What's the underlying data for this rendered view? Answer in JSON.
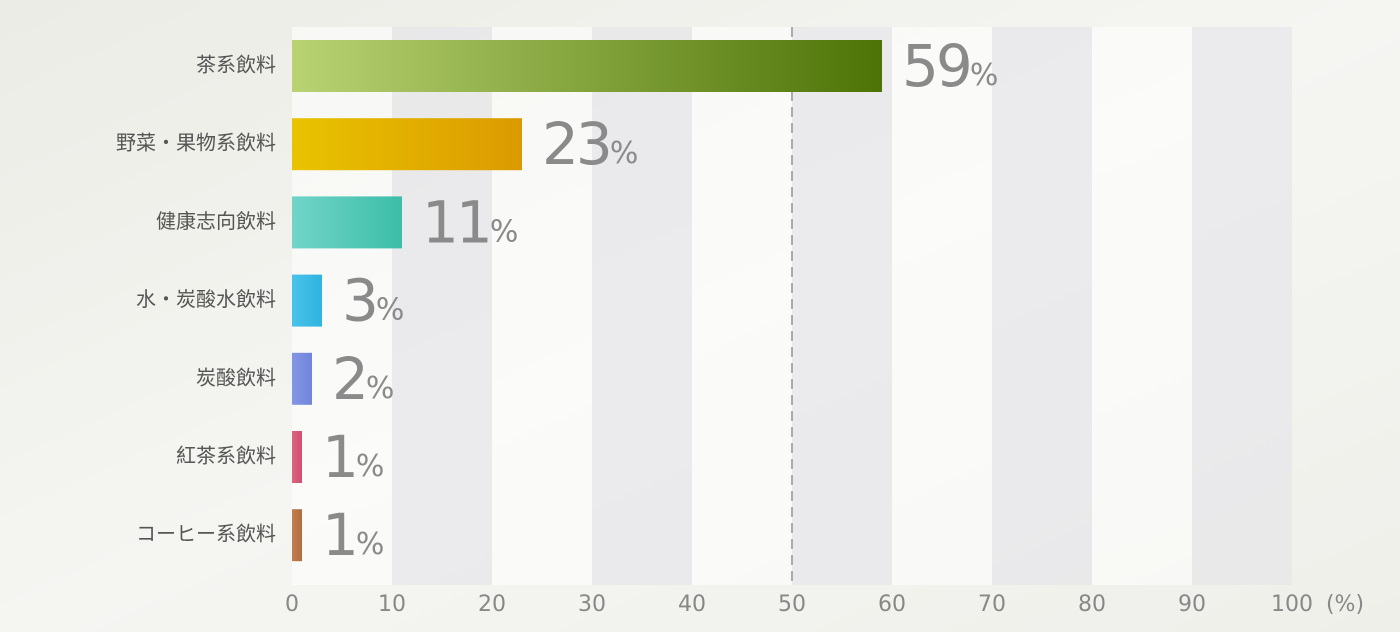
{
  "chart_data": {
    "type": "hbar",
    "categories": [
      "茶系飲料",
      "野菜・果物系飲料",
      "健康志向飲料",
      "水・炭酸水飲料",
      "炭酸飲料",
      "紅茶系飲料",
      "コーヒー系飲料"
    ],
    "values": [
      59,
      23,
      11,
      3,
      2,
      1,
      1
    ],
    "value_labels": [
      "59%",
      "23%",
      "11%",
      "3%",
      "2%",
      "1%",
      "1%"
    ],
    "colors": [
      [
        "#b9d373",
        "#4d7306"
      ],
      [
        "#e9c300",
        "#db9a00"
      ],
      [
        "#72d4c9",
        "#3cbea8"
      ],
      [
        "#49c3ea",
        "#2fb3e0"
      ],
      [
        "#8396e6",
        "#7185dc"
      ],
      [
        "#dd6581",
        "#cf4f6e"
      ],
      [
        "#c07f52",
        "#b06c3e"
      ]
    ],
    "xlim": [
      0,
      100
    ],
    "xticks": [
      0,
      10,
      20,
      30,
      40,
      50,
      60,
      70,
      80,
      90,
      100
    ],
    "x_unit": "(%)",
    "reference_line": 50
  }
}
